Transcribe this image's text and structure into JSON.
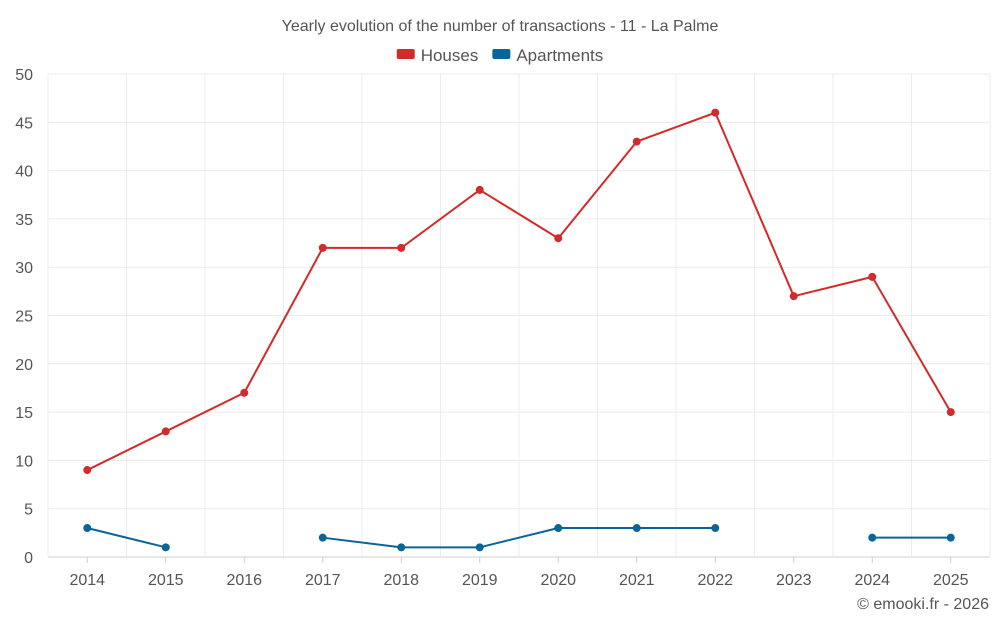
{
  "chart_data": {
    "type": "line",
    "title": "Yearly evolution of the number of transactions - 11 - La Palme",
    "xlabel": "",
    "ylabel": "",
    "ylim": [
      0,
      50
    ],
    "yticks": [
      0,
      5,
      10,
      15,
      20,
      25,
      30,
      35,
      40,
      45,
      50
    ],
    "grid": true,
    "legend_position": "top-center",
    "categories": [
      "2014",
      "2015",
      "2016",
      "2017",
      "2018",
      "2019",
      "2020",
      "2021",
      "2022",
      "2023",
      "2024",
      "2025"
    ],
    "series": [
      {
        "name": "Houses",
        "color": "#d32a2a",
        "values": [
          9,
          13,
          17,
          32,
          32,
          38,
          33,
          43,
          46,
          27,
          29,
          15
        ]
      },
      {
        "name": "Apartments",
        "color": "#0b6496",
        "values": [
          3,
          1,
          null,
          2,
          1,
          1,
          3,
          3,
          3,
          null,
          2,
          2
        ]
      }
    ]
  },
  "footer": {
    "copyright": "© emooki.fr - 2026"
  }
}
